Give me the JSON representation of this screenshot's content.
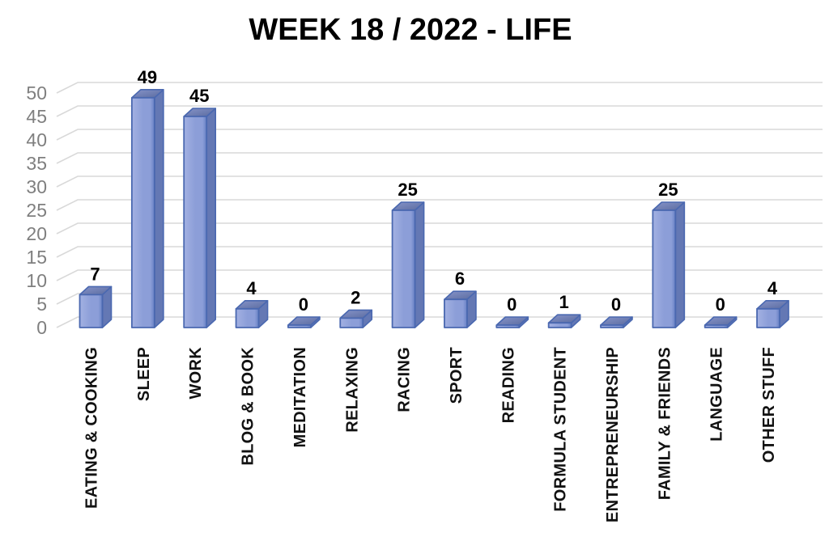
{
  "chart_data": {
    "type": "bar",
    "style": "3d-column",
    "title": "WEEK 18 / 2022 - LIFE",
    "categories": [
      "EATING & COOKING",
      "SLEEP",
      "WORK",
      "BLOG & BOOK",
      "MEDITATION",
      "RELAXING",
      "RACING",
      "SPORT",
      "READING",
      "FORMULA STUDENT",
      "ENTREPRENEURSHIP",
      "FAMILY & FRIENDS",
      "LANGUAGE",
      "OTHER STUFF"
    ],
    "values": [
      7,
      49,
      45,
      4,
      0,
      2,
      25,
      6,
      0,
      1,
      0,
      25,
      0,
      4
    ],
    "data_labels": [
      7,
      49,
      45,
      4,
      0,
      2,
      25,
      6,
      0,
      1,
      0,
      25,
      0,
      4
    ],
    "xlabel": "",
    "ylabel": "",
    "ylim": [
      0,
      50
    ],
    "yticks": [
      0,
      5,
      10,
      15,
      20,
      25,
      30,
      35,
      40,
      45,
      50
    ],
    "grid": true,
    "legend": false,
    "colors": {
      "background": "#ffffff",
      "title": "#000000",
      "gridline": "#d9d9d9",
      "axis_tick_label": "#7f7f7f",
      "value_label": "#000000",
      "category_label": "#121212",
      "bar_front_light": "#a3b1e2",
      "bar_front_mid": "#8c9ed8",
      "bar_front_dark": "#6680c4",
      "bar_top_light": "#8794c9",
      "bar_top_dark": "#5a6b9f",
      "bar_side": "#6478b4",
      "bar_border": "#4a68b0"
    }
  }
}
